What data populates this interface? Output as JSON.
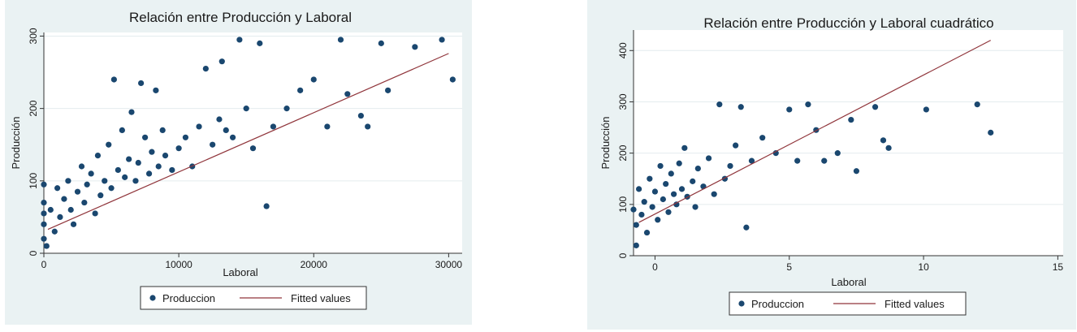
{
  "chart_data": [
    {
      "type": "scatter",
      "title": "Relación entre Producción y Laboral",
      "xlabel": "Laboral",
      "ylabel": "Producción",
      "xlim": [
        0,
        31000
      ],
      "ylim": [
        0,
        305
      ],
      "xticks": [
        0,
        10000,
        20000,
        30000
      ],
      "yticks": [
        0,
        100,
        200,
        300
      ],
      "grid": true,
      "legend_position": "bottom",
      "series": [
        {
          "name": "Produccion",
          "kind": "scatter",
          "color": "#1a476f",
          "points": [
            [
              0,
              95
            ],
            [
              0,
              70
            ],
            [
              0,
              55
            ],
            [
              0,
              40
            ],
            [
              0,
              20
            ],
            [
              200,
              10
            ],
            [
              500,
              60
            ],
            [
              800,
              30
            ],
            [
              1000,
              90
            ],
            [
              1200,
              50
            ],
            [
              1500,
              75
            ],
            [
              1800,
              100
            ],
            [
              2000,
              60
            ],
            [
              2200,
              40
            ],
            [
              2500,
              85
            ],
            [
              2800,
              120
            ],
            [
              3000,
              70
            ],
            [
              3200,
              95
            ],
            [
              3500,
              110
            ],
            [
              3800,
              55
            ],
            [
              4000,
              135
            ],
            [
              4200,
              80
            ],
            [
              4500,
              100
            ],
            [
              4800,
              150
            ],
            [
              5000,
              90
            ],
            [
              5200,
              240
            ],
            [
              5500,
              115
            ],
            [
              5800,
              170
            ],
            [
              6000,
              105
            ],
            [
              6300,
              130
            ],
            [
              6500,
              195
            ],
            [
              6800,
              100
            ],
            [
              7000,
              125
            ],
            [
              7200,
              235
            ],
            [
              7500,
              160
            ],
            [
              7800,
              110
            ],
            [
              8000,
              140
            ],
            [
              8300,
              225
            ],
            [
              8500,
              120
            ],
            [
              8800,
              170
            ],
            [
              9000,
              135
            ],
            [
              9500,
              115
            ],
            [
              10000,
              145
            ],
            [
              10500,
              160
            ],
            [
              11000,
              120
            ],
            [
              11500,
              175
            ],
            [
              12000,
              255
            ],
            [
              12500,
              150
            ],
            [
              13000,
              185
            ],
            [
              13200,
              265
            ],
            [
              13500,
              170
            ],
            [
              14000,
              160
            ],
            [
              14500,
              295
            ],
            [
              15000,
              200
            ],
            [
              15500,
              145
            ],
            [
              16000,
              290
            ],
            [
              16500,
              65
            ],
            [
              17000,
              175
            ],
            [
              18000,
              200
            ],
            [
              19000,
              225
            ],
            [
              20000,
              240
            ],
            [
              21000,
              175
            ],
            [
              22000,
              295
            ],
            [
              22500,
              220
            ],
            [
              23500,
              190
            ],
            [
              24000,
              175
            ],
            [
              25000,
              290
            ],
            [
              25500,
              225
            ],
            [
              27500,
              285
            ],
            [
              29500,
              295
            ],
            [
              30300,
              240
            ]
          ]
        },
        {
          "name": "Fitted values",
          "kind": "line",
          "color": "#90353b",
          "points": [
            [
              300,
              33
            ],
            [
              30000,
              276
            ]
          ]
        }
      ]
    },
    {
      "type": "scatter",
      "title": "Relación entre Producción y Laboral cuadrático",
      "xlabel": "Laboral",
      "ylabel": "Producción",
      "xlim": [
        -0.8,
        15.2
      ],
      "ylim": [
        0,
        440
      ],
      "xticks": [
        0,
        5,
        10,
        15
      ],
      "yticks": [
        0,
        100,
        200,
        300,
        400
      ],
      "grid": true,
      "legend_position": "bottom",
      "series": [
        {
          "name": "Produccion",
          "kind": "scatter",
          "color": "#1a476f",
          "points": [
            [
              -0.8,
              90
            ],
            [
              -0.7,
              60
            ],
            [
              -0.7,
              20
            ],
            [
              -0.6,
              130
            ],
            [
              -0.5,
              80
            ],
            [
              -0.4,
              105
            ],
            [
              -0.3,
              45
            ],
            [
              -0.2,
              150
            ],
            [
              -0.1,
              95
            ],
            [
              0,
              125
            ],
            [
              0.1,
              70
            ],
            [
              0.2,
              175
            ],
            [
              0.3,
              110
            ],
            [
              0.4,
              140
            ],
            [
              0.5,
              85
            ],
            [
              0.6,
              160
            ],
            [
              0.7,
              120
            ],
            [
              0.8,
              100
            ],
            [
              0.9,
              180
            ],
            [
              1,
              130
            ],
            [
              1.1,
              210
            ],
            [
              1.2,
              115
            ],
            [
              1.4,
              145
            ],
            [
              1.5,
              95
            ],
            [
              1.6,
              170
            ],
            [
              1.8,
              135
            ],
            [
              2,
              190
            ],
            [
              2.2,
              120
            ],
            [
              2.4,
              295
            ],
            [
              2.6,
              150
            ],
            [
              2.8,
              175
            ],
            [
              3,
              215
            ],
            [
              3.2,
              290
            ],
            [
              3.4,
              55
            ],
            [
              3.6,
              185
            ],
            [
              4,
              230
            ],
            [
              4.5,
              200
            ],
            [
              5,
              285
            ],
            [
              5.3,
              185
            ],
            [
              5.7,
              295
            ],
            [
              6,
              245
            ],
            [
              6.3,
              185
            ],
            [
              6.8,
              200
            ],
            [
              7.3,
              265
            ],
            [
              7.5,
              165
            ],
            [
              8.2,
              290
            ],
            [
              8.5,
              225
            ],
            [
              8.7,
              210
            ],
            [
              10.1,
              285
            ],
            [
              12,
              295
            ],
            [
              12.5,
              240
            ]
          ]
        },
        {
          "name": "Fitted values",
          "kind": "line",
          "color": "#90353b",
          "points": [
            [
              -0.6,
              65
            ],
            [
              12.5,
              420
            ]
          ]
        }
      ]
    }
  ]
}
